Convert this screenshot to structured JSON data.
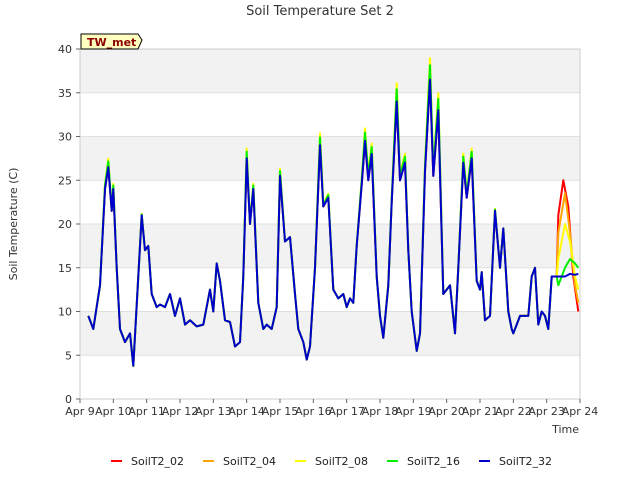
{
  "chart_data": {
    "type": "line",
    "title": "Soil Temperature Set 2",
    "xlabel": "Time",
    "ylabel": "Soil Temperature (C)",
    "station_label": "TW_met",
    "ylim": [
      0,
      40
    ],
    "yticks": [
      0,
      5,
      10,
      15,
      20,
      25,
      30,
      35,
      40
    ],
    "xlim": [
      9,
      24
    ],
    "xticks": [
      9,
      10,
      11,
      12,
      13,
      14,
      15,
      16,
      17,
      18,
      19,
      20,
      21,
      22,
      23,
      24
    ],
    "xtick_labels": [
      "Apr 9",
      "Apr 10",
      "Apr 11",
      "Apr 12",
      "Apr 13",
      "Apr 14",
      "Apr 15",
      "Apr 16",
      "Apr 17",
      "Apr 18",
      "Apr 19",
      "Apr 20",
      "Apr 21",
      "Apr 22",
      "Apr 23",
      "Apr 24"
    ],
    "grid": true,
    "legend_position": "bottom",
    "base_series": {
      "x": [
        9.25,
        9.4,
        9.6,
        9.75,
        9.85,
        9.95,
        10.0,
        10.1,
        10.2,
        10.35,
        10.5,
        10.6,
        10.75,
        10.85,
        10.95,
        11.05,
        11.15,
        11.3,
        11.4,
        11.55,
        11.7,
        11.85,
        12.0,
        12.15,
        12.3,
        12.5,
        12.7,
        12.9,
        13.0,
        13.1,
        13.2,
        13.35,
        13.5,
        13.65,
        13.8,
        13.9,
        14.0,
        14.1,
        14.2,
        14.35,
        14.5,
        14.6,
        14.75,
        14.9,
        15.0,
        15.15,
        15.3,
        15.45,
        15.55,
        15.7,
        15.8,
        15.9,
        16.05,
        16.2,
        16.3,
        16.45,
        16.6,
        16.75,
        16.9,
        17.0,
        17.1,
        17.2,
        17.3,
        17.45,
        17.55,
        17.65,
        17.75,
        17.9,
        18.0,
        18.1,
        18.25,
        18.35,
        18.5,
        18.6,
        18.75,
        18.85,
        18.95,
        19.1,
        19.2,
        19.35,
        19.5,
        19.6,
        19.75,
        19.9,
        20.0,
        20.1,
        20.25,
        20.35,
        20.5,
        20.6,
        20.75,
        20.9,
        21.0,
        21.05,
        21.15,
        21.3,
        21.45,
        21.6,
        21.7,
        21.85,
        21.95,
        22.0,
        22.1,
        22.2,
        22.3,
        22.45,
        22.55,
        22.65,
        22.75,
        22.85,
        22.95,
        23.05,
        23.15,
        23.3
      ],
      "y": [
        9.5,
        8.0,
        13.0,
        24.0,
        26.5,
        21.5,
        24.0,
        15.0,
        8.0,
        6.5,
        7.5,
        3.8,
        14.0,
        21.0,
        17.0,
        17.5,
        12.0,
        10.5,
        10.8,
        10.5,
        12.0,
        9.5,
        11.5,
        8.5,
        9.0,
        8.3,
        8.5,
        12.5,
        10.0,
        15.5,
        13.5,
        9.0,
        8.8,
        6.0,
        6.5,
        14.0,
        27.5,
        20.0,
        24.0,
        11.0,
        8.0,
        8.5,
        8.0,
        10.5,
        25.5,
        18.0,
        18.5,
        12.0,
        8.0,
        6.5,
        4.5,
        6.0,
        15.0,
        29.0,
        22.0,
        23.0,
        12.5,
        11.5,
        12.0,
        10.5,
        11.5,
        11.0,
        17.5,
        24.5,
        29.5,
        25.0,
        28.0,
        14.0,
        9.5,
        7.0,
        13.0,
        22.5,
        34.0,
        25.0,
        27.0,
        17.0,
        10.0,
        5.5,
        7.5,
        26.0,
        36.5,
        25.5,
        33.0,
        12.0,
        12.5,
        13.0,
        7.5,
        15.0,
        27.0,
        23.0,
        27.5,
        13.5,
        12.5,
        14.5,
        9.0,
        9.5,
        21.5,
        15.0,
        19.5,
        10.0,
        8.0,
        7.5,
        8.5,
        9.5,
        9.5,
        9.5,
        14.0,
        15.0,
        8.5,
        10.0,
        9.5,
        8.0,
        14.0,
        14.0
      ]
    },
    "series": [
      {
        "name": "SoilT2_02",
        "color": "#ff0000",
        "peak_mult": 1.0,
        "end": [
          [
            23.35,
            21.0
          ],
          [
            23.5,
            25.0
          ],
          [
            23.65,
            22.0
          ],
          [
            23.8,
            14.0
          ],
          [
            23.95,
            10.0
          ]
        ]
      },
      {
        "name": "SoilT2_04",
        "color": "#ffa500",
        "peak_mult": 1.05,
        "end": [
          [
            23.35,
            19.0
          ],
          [
            23.55,
            23.5
          ],
          [
            23.7,
            19.0
          ],
          [
            23.85,
            13.0
          ],
          [
            23.95,
            11.0
          ]
        ]
      },
      {
        "name": "SoilT2_08",
        "color": "#ffff00",
        "peak_mult": 1.15,
        "end": [
          [
            23.35,
            16.0
          ],
          [
            23.55,
            20.0
          ],
          [
            23.7,
            18.0
          ],
          [
            23.85,
            14.0
          ],
          [
            23.95,
            12.5
          ]
        ]
      },
      {
        "name": "SoilT2_16",
        "color": "#00ee00",
        "peak_mult": 1.1,
        "end": [
          [
            23.35,
            13.0
          ],
          [
            23.55,
            15.0
          ],
          [
            23.7,
            16.0
          ],
          [
            23.85,
            15.5
          ],
          [
            23.95,
            15.0
          ]
        ]
      },
      {
        "name": "SoilT2_32",
        "color": "#0000cc",
        "peak_mult": 1.0,
        "end": [
          [
            23.35,
            14.0
          ],
          [
            23.55,
            14.0
          ],
          [
            23.7,
            14.3
          ],
          [
            23.85,
            14.2
          ],
          [
            23.95,
            14.3
          ]
        ]
      }
    ]
  }
}
